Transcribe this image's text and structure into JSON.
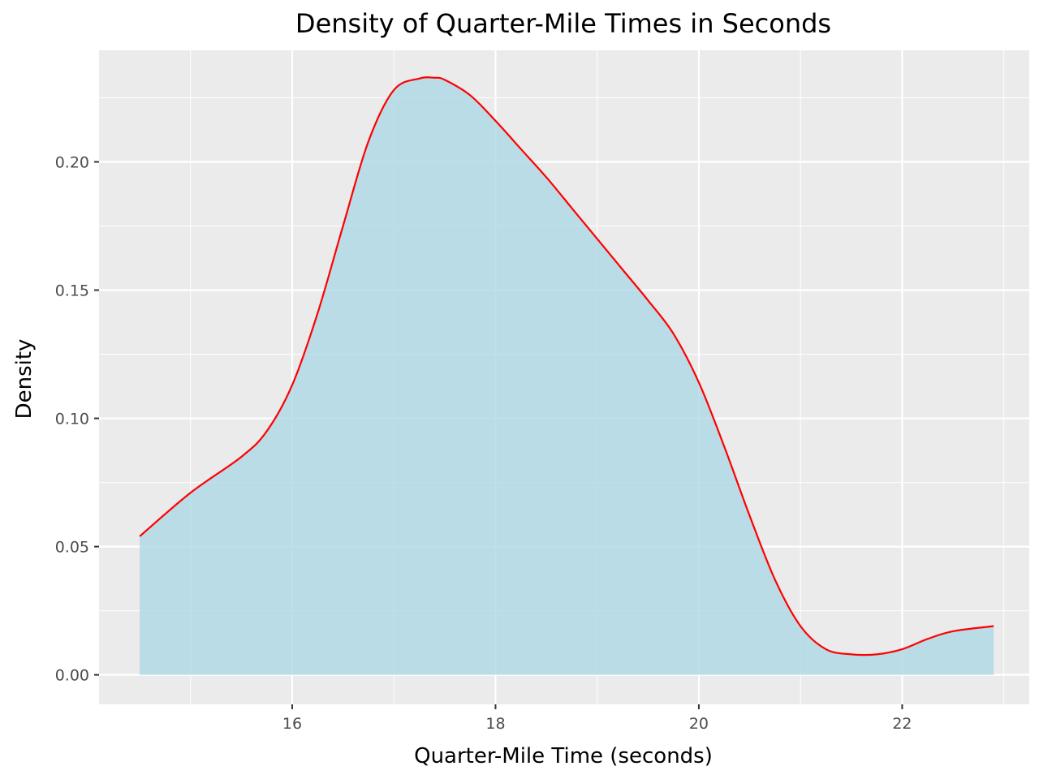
{
  "chart_data": {
    "type": "area",
    "title": "Density of Quarter-Mile Times in Seconds",
    "xlabel": "Quarter-Mile Time (seconds)",
    "ylabel": "Density",
    "xlim": [
      14.1,
      23.25
    ],
    "ylim": [
      -0.0115,
      0.2435
    ],
    "x_ticks": [
      16,
      18,
      20,
      22
    ],
    "x_tick_labels": [
      "16",
      "18",
      "20",
      "22"
    ],
    "y_ticks": [
      0.0,
      0.05,
      0.1,
      0.15,
      0.2
    ],
    "y_tick_labels": [
      "0.00",
      "0.05",
      "0.10",
      "0.15",
      "0.20"
    ],
    "grid": true,
    "fill_color": "#add8e6",
    "fill_opacity": 0.8,
    "line_color": "#ff0000",
    "panel_background": "#ebebeb",
    "series": [
      {
        "x": [
          14.5,
          15.0,
          15.5,
          15.75,
          16.0,
          16.25,
          16.5,
          16.75,
          17.0,
          17.25,
          17.4,
          17.5,
          17.75,
          18.0,
          18.25,
          18.5,
          18.75,
          19.0,
          19.25,
          19.5,
          19.75,
          20.0,
          20.25,
          20.5,
          20.75,
          21.0,
          21.25,
          21.5,
          21.75,
          22.0,
          22.25,
          22.5,
          22.9
        ],
        "y": [
          0.054,
          0.071,
          0.085,
          0.095,
          0.113,
          0.141,
          0.175,
          0.208,
          0.228,
          0.2325,
          0.2328,
          0.232,
          0.226,
          0.216,
          0.205,
          0.194,
          0.182,
          0.17,
          0.158,
          0.146,
          0.133,
          0.114,
          0.089,
          0.062,
          0.037,
          0.019,
          0.01,
          0.008,
          0.008,
          0.01,
          0.014,
          0.017,
          0.019
        ]
      }
    ]
  }
}
